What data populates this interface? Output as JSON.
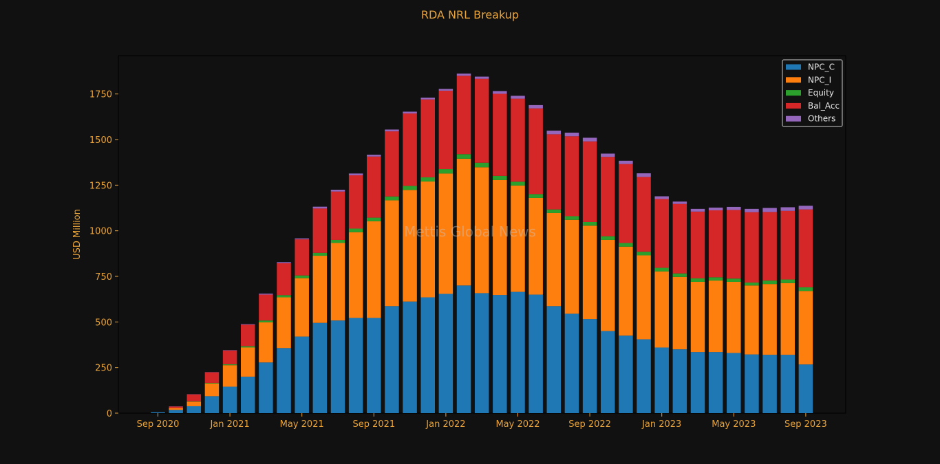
{
  "chart_data": {
    "type": "bar",
    "stacked": true,
    "title": "RDA NRL Breakup",
    "ylabel": "USD Million",
    "xlabel": "",
    "watermark": "Mettis Global News",
    "ylim": [
      0,
      1960
    ],
    "yticks": [
      0,
      250,
      500,
      750,
      1000,
      1250,
      1500,
      1750
    ],
    "xtick_labels": [
      {
        "label": "Sep 2020",
        "index": 0
      },
      {
        "label": "Jan 2021",
        "index": 4
      },
      {
        "label": "May 2021",
        "index": 8
      },
      {
        "label": "Sep 2021",
        "index": 12
      },
      {
        "label": "Jan 2022",
        "index": 16
      },
      {
        "label": "May 2022",
        "index": 20
      },
      {
        "label": "Sep 2022",
        "index": 24
      },
      {
        "label": "Jan 2023",
        "index": 28
      },
      {
        "label": "May 2023",
        "index": 32
      },
      {
        "label": "Sep 2023",
        "index": 36
      }
    ],
    "categories": [
      "2020-09",
      "2020-10",
      "2020-11",
      "2020-12",
      "2021-01",
      "2021-02",
      "2021-03",
      "2021-04",
      "2021-05",
      "2021-06",
      "2021-07",
      "2021-08",
      "2021-09",
      "2021-10",
      "2021-11",
      "2021-12",
      "2022-01",
      "2022-02",
      "2022-03",
      "2022-04",
      "2022-05",
      "2022-06",
      "2022-07",
      "2022-08",
      "2022-09",
      "2022-10",
      "2022-11",
      "2022-12",
      "2023-01",
      "2023-02",
      "2023-03",
      "2023-04",
      "2023-05",
      "2023-06",
      "2023-07",
      "2023-08",
      "2023-09"
    ],
    "legend_position": "top-right",
    "grid": false,
    "series": [
      {
        "name": "NPC_C",
        "color": "#1f77b4",
        "values": [
          5,
          18,
          38,
          93,
          145,
          200,
          278,
          357,
          420,
          495,
          508,
          522,
          522,
          587,
          612,
          635,
          654,
          700,
          658,
          648,
          665,
          650,
          587,
          545,
          516,
          450,
          425,
          405,
          360,
          350,
          335,
          335,
          330,
          322,
          320,
          320,
          267
        ]
      },
      {
        "name": "NPC_I",
        "color": "#ff7f0e",
        "values": [
          0,
          10,
          25,
          70,
          118,
          160,
          220,
          278,
          320,
          368,
          425,
          470,
          530,
          580,
          612,
          635,
          660,
          695,
          690,
          630,
          583,
          530,
          510,
          515,
          512,
          500,
          488,
          460,
          417,
          397,
          385,
          392,
          390,
          378,
          388,
          393,
          403
        ]
      },
      {
        "name": "Equity",
        "color": "#2ca02c",
        "values": [
          0,
          0,
          2,
          3,
          5,
          7,
          10,
          12,
          15,
          16,
          17,
          20,
          20,
          21,
          22,
          23,
          24,
          25,
          25,
          23,
          21,
          21,
          20,
          20,
          20,
          20,
          20,
          20,
          20,
          19,
          19,
          18,
          18,
          16,
          19,
          20,
          20
        ]
      },
      {
        "name": "Bal_Acc",
        "color": "#d62728",
        "values": [
          0,
          8,
          38,
          58,
          75,
          118,
          142,
          175,
          198,
          243,
          265,
          292,
          335,
          357,
          397,
          427,
          430,
          430,
          460,
          450,
          455,
          470,
          412,
          438,
          442,
          435,
          433,
          410,
          377,
          381,
          366,
          367,
          376,
          386,
          376,
          376,
          427
        ]
      },
      {
        "name": "Others",
        "color": "#9467bd",
        "values": [
          0,
          1,
          1,
          1,
          2,
          3,
          5,
          6,
          5,
          10,
          10,
          10,
          10,
          10,
          10,
          10,
          10,
          12,
          12,
          15,
          16,
          18,
          20,
          20,
          20,
          18,
          18,
          20,
          15,
          13,
          15,
          15,
          17,
          18,
          22,
          20,
          20
        ]
      }
    ]
  }
}
